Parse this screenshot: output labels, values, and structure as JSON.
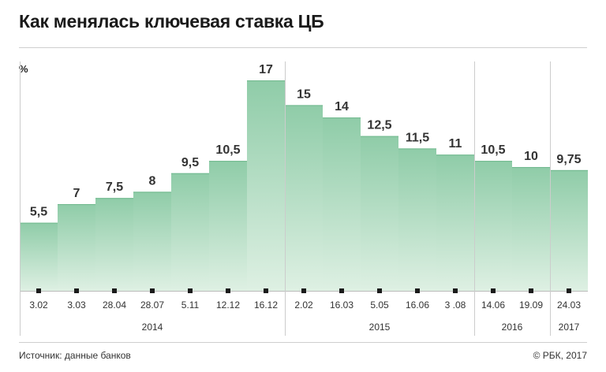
{
  "header": {
    "title": "Как менялась ключевая ставка ЦБ"
  },
  "footer": {
    "source": "Источник: данные банков",
    "copyright": "© РБК, 2017"
  },
  "colors": {
    "bar_top": "#8fcca8",
    "bar_bottom": "#def0e3",
    "marker": "#1a1a1a",
    "grid": "#cccccc"
  },
  "chart_data": {
    "type": "bar",
    "title": "Как менялась ключевая ставка ЦБ",
    "ylabel": "%",
    "ylim": [
      0,
      17
    ],
    "categories": [
      "3.02",
      "3.03",
      "28.04",
      "28.07",
      "5.11",
      "12.12",
      "16.12",
      "2.02",
      "16.03",
      "5.05",
      "16.06",
      "3 .08",
      "14.06",
      "19.09",
      "24.03"
    ],
    "values": [
      5.5,
      7,
      7.5,
      8,
      9.5,
      10.5,
      17,
      15,
      14,
      12.5,
      11.5,
      11,
      10.5,
      10,
      9.75
    ],
    "value_labels": [
      "5,5",
      "7",
      "7,5",
      "8",
      "9,5",
      "10,5",
      "17",
      "15",
      "14",
      "12,5",
      "11,5",
      "11",
      "10,5",
      "10",
      "9,75"
    ],
    "groups": [
      {
        "label": "2014",
        "count": 7
      },
      {
        "label": "2015",
        "count": 5
      },
      {
        "label": "2016",
        "count": 2
      },
      {
        "label": "2017",
        "count": 1
      }
    ],
    "grid": false,
    "legend": "none"
  }
}
